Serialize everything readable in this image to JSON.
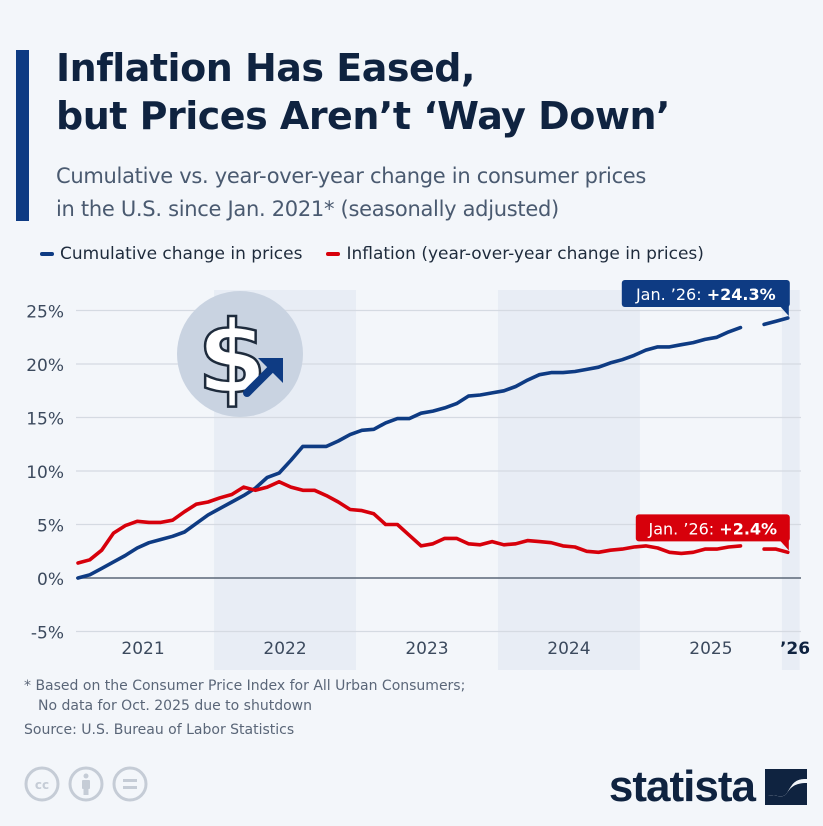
{
  "header": {
    "title_line1": "Inflation Has Eased,",
    "title_line2": "but Prices Aren’t ‘Way Down’",
    "subtitle_line1": "Cumulative vs. year-over-year change in consumer prices",
    "subtitle_line2": "in the U.S. since Jan. 2021* (seasonally adjusted)"
  },
  "colors": {
    "background": "#f3f6fa",
    "accent": "#0e3b83",
    "cumulative": "#0e3b83",
    "inflation": "#d7000b",
    "band": "#e8edf5",
    "grid": "#d5dae2",
    "zero_line": "#5b6677",
    "text_dark": "#0f2340",
    "text_muted": "#4a5a70"
  },
  "chart_data": {
    "type": "line",
    "title": "Inflation Has Eased, but Prices Aren’t ‘Way Down’",
    "subtitle": "Cumulative vs. year-over-year change in consumer prices in the U.S. since Jan. 2021* (seasonally adjusted)",
    "xlabel": "",
    "ylabel": "",
    "ylim": [
      -5,
      25
    ],
    "yticks": [
      -5,
      0,
      5,
      10,
      15,
      20,
      25
    ],
    "ytick_labels": [
      "-5%",
      "0%",
      "5%",
      "10%",
      "15%",
      "20%",
      "25%"
    ],
    "xtick_labels": [
      "2021",
      "2022",
      "2023",
      "2024",
      "2025",
      "’26"
    ],
    "grid": true,
    "legend_position": "top-left",
    "x": [
      "Jan 2021",
      "Feb 2021",
      "Mar 2021",
      "Apr 2021",
      "May 2021",
      "Jun 2021",
      "Jul 2021",
      "Aug 2021",
      "Sep 2021",
      "Oct 2021",
      "Nov 2021",
      "Dec 2021",
      "Jan 2022",
      "Feb 2022",
      "Mar 2022",
      "Apr 2022",
      "May 2022",
      "Jun 2022",
      "Jul 2022",
      "Aug 2022",
      "Sep 2022",
      "Oct 2022",
      "Nov 2022",
      "Dec 2022",
      "Jan 2023",
      "Feb 2023",
      "Mar 2023",
      "Apr 2023",
      "May 2023",
      "Jun 2023",
      "Jul 2023",
      "Aug 2023",
      "Sep 2023",
      "Oct 2023",
      "Nov 2023",
      "Dec 2023",
      "Jan 2024",
      "Feb 2024",
      "Mar 2024",
      "Apr 2024",
      "May 2024",
      "Jun 2024",
      "Jul 2024",
      "Aug 2024",
      "Sep 2024",
      "Oct 2024",
      "Nov 2024",
      "Dec 2024",
      "Jan 2025",
      "Feb 2025",
      "Mar 2025",
      "Apr 2025",
      "May 2025",
      "Jun 2025",
      "Jul 2025",
      "Aug 2025",
      "Sep 2025",
      "Oct 2025",
      "Nov 2025",
      "Dec 2025",
      "Jan 2026"
    ],
    "series": [
      {
        "name": "Cumulative change in prices",
        "color": "#0e3b83",
        "values": [
          0.0,
          0.3,
          0.9,
          1.5,
          2.1,
          2.8,
          3.3,
          3.6,
          3.9,
          4.3,
          5.1,
          5.9,
          6.5,
          7.1,
          7.7,
          8.4,
          9.4,
          9.8,
          11.0,
          12.3,
          12.3,
          12.3,
          12.8,
          13.4,
          13.8,
          13.9,
          14.5,
          14.9,
          14.9,
          15.4,
          15.6,
          15.9,
          16.3,
          17.0,
          17.1,
          17.3,
          17.5,
          17.9,
          18.5,
          19.0,
          19.2,
          19.2,
          19.3,
          19.5,
          19.7,
          20.1,
          20.4,
          20.8,
          21.3,
          21.6,
          21.6,
          21.8,
          22.0,
          22.3,
          22.5,
          23.0,
          23.4,
          null,
          23.7,
          24.0,
          24.3
        ]
      },
      {
        "name": "Inflation (year-over-year change in prices)",
        "color": "#d7000b",
        "values": [
          1.4,
          1.7,
          2.6,
          4.2,
          4.9,
          5.3,
          5.2,
          5.2,
          5.4,
          6.2,
          6.9,
          7.1,
          7.5,
          7.8,
          8.5,
          8.2,
          8.5,
          9.0,
          8.5,
          8.2,
          8.2,
          7.7,
          7.1,
          6.4,
          6.3,
          6.0,
          5.0,
          5.0,
          4.0,
          3.0,
          3.2,
          3.7,
          3.7,
          3.2,
          3.1,
          3.4,
          3.1,
          3.2,
          3.5,
          3.4,
          3.3,
          3.0,
          2.9,
          2.5,
          2.4,
          2.6,
          2.7,
          2.9,
          3.0,
          2.8,
          2.4,
          2.3,
          2.4,
          2.7,
          2.7,
          2.9,
          3.0,
          null,
          2.7,
          2.7,
          2.4
        ]
      }
    ],
    "annotations": [
      {
        "series": "Cumulative change in prices",
        "label_prefix": "Jan. ’26: ",
        "label_value": "+24.3%"
      },
      {
        "series": "Inflation (year-over-year change in prices)",
        "label_prefix": "Jan. ’26: ",
        "label_value": "+2.4%"
      }
    ],
    "shaded_bands": [
      "2022",
      "2024",
      "’26"
    ]
  },
  "footer": {
    "footnote_line1": "* Based on the Consumer Price Index for All Urban Consumers;",
    "footnote_line2": "No data for Oct. 2025 due to shutdown",
    "source": "Source: U.S. Bureau of Labor Statistics",
    "license_icons": [
      "creative-commons-icon",
      "attribution-icon",
      "no-derivatives-icon"
    ],
    "brand": "statista"
  }
}
